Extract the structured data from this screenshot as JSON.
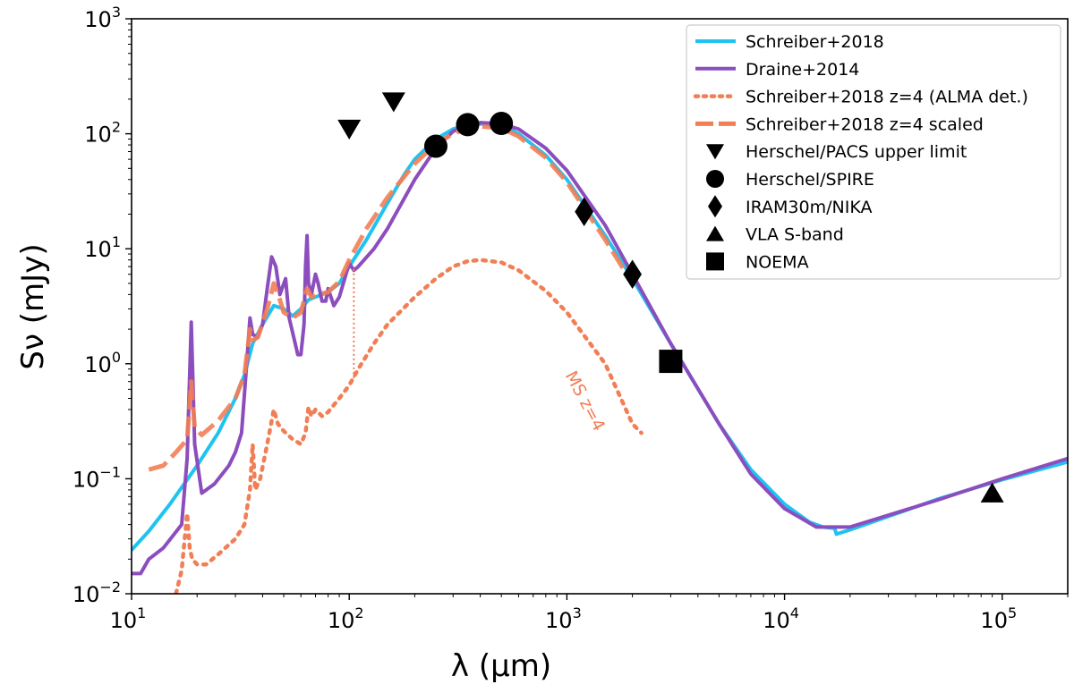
{
  "chart_data": {
    "type": "line",
    "xlabel": "λ (μm)",
    "ylabel": "Sν (mJy)",
    "xscale": "log",
    "yscale": "log",
    "xlim": [
      10,
      200000
    ],
    "ylim": [
      0.01,
      1000
    ],
    "grid": false,
    "legend_position": "top-right",
    "x_ticks": [
      {
        "base": "10",
        "exp": "1"
      },
      {
        "base": "10",
        "exp": "2"
      },
      {
        "base": "10",
        "exp": "3"
      },
      {
        "base": "10",
        "exp": "4"
      },
      {
        "base": "10",
        "exp": "5"
      }
    ],
    "y_ticks": [
      {
        "base": "10",
        "exp": "−2"
      },
      {
        "base": "10",
        "exp": "−1"
      },
      {
        "base": "10",
        "exp": "0"
      },
      {
        "base": "10",
        "exp": "1"
      },
      {
        "base": "10",
        "exp": "2"
      },
      {
        "base": "10",
        "exp": "3"
      }
    ],
    "series": [
      {
        "name": "Schreiber+2018",
        "color": "#1fc3f2",
        "style": "solid",
        "points": [
          [
            10,
            0.024
          ],
          [
            12,
            0.035
          ],
          [
            15,
            0.06
          ],
          [
            20,
            0.13
          ],
          [
            25,
            0.25
          ],
          [
            30,
            0.5
          ],
          [
            33,
            0.8
          ],
          [
            36,
            1.5
          ],
          [
            40,
            2.2
          ],
          [
            45,
            3.2
          ],
          [
            50,
            3.0
          ],
          [
            55,
            2.6
          ],
          [
            60,
            3.0
          ],
          [
            65,
            3.6
          ],
          [
            70,
            3.8
          ],
          [
            80,
            4.2
          ],
          [
            90,
            5.0
          ],
          [
            100,
            7.0
          ],
          [
            120,
            12
          ],
          [
            150,
            25
          ],
          [
            180,
            45
          ],
          [
            200,
            60
          ],
          [
            250,
            90
          ],
          [
            300,
            110
          ],
          [
            350,
            120
          ],
          [
            400,
            122
          ],
          [
            500,
            118
          ],
          [
            600,
            100
          ],
          [
            800,
            65
          ],
          [
            1000,
            40
          ],
          [
            1500,
            13
          ],
          [
            2000,
            5.5
          ],
          [
            3000,
            1.5
          ],
          [
            5000,
            0.3
          ],
          [
            7000,
            0.12
          ],
          [
            10000,
            0.06
          ],
          [
            13000,
            0.042
          ],
          [
            15000,
            0.038
          ],
          [
            17000,
            0.037
          ],
          [
            17300,
            0.033
          ],
          [
            20000,
            0.036
          ],
          [
            50000,
            0.066
          ],
          [
            100000,
            0.098
          ],
          [
            200000,
            0.14
          ]
        ]
      },
      {
        "name": "Draine+2014",
        "color": "#8c4dbd",
        "style": "solid",
        "points": [
          [
            10,
            0.015
          ],
          [
            11,
            0.015
          ],
          [
            12,
            0.02
          ],
          [
            14,
            0.025
          ],
          [
            17,
            0.04
          ],
          [
            18,
            0.15
          ],
          [
            18.8,
            2.3
          ],
          [
            19.5,
            0.2
          ],
          [
            21,
            0.075
          ],
          [
            24,
            0.09
          ],
          [
            28,
            0.13
          ],
          [
            30,
            0.17
          ],
          [
            32,
            0.25
          ],
          [
            33.5,
            0.8
          ],
          [
            35,
            2.5
          ],
          [
            36,
            1.8
          ],
          [
            38,
            1.7
          ],
          [
            40,
            2.2
          ],
          [
            42,
            4.5
          ],
          [
            44,
            8.5
          ],
          [
            46,
            7.0
          ],
          [
            48,
            4.0
          ],
          [
            51,
            5.5
          ],
          [
            53,
            2.5
          ],
          [
            56,
            1.6
          ],
          [
            58,
            1.2
          ],
          [
            60,
            1.2
          ],
          [
            62,
            2.2
          ],
          [
            63,
            7.0
          ],
          [
            64,
            13.0
          ],
          [
            65,
            5.0
          ],
          [
            67,
            4.0
          ],
          [
            70,
            6.0
          ],
          [
            72,
            5.0
          ],
          [
            75,
            3.5
          ],
          [
            78,
            3.5
          ],
          [
            80,
            4.5
          ],
          [
            85,
            3.2
          ],
          [
            90,
            3.8
          ],
          [
            100,
            7.5
          ],
          [
            105,
            6.5
          ],
          [
            110,
            7.0
          ],
          [
            130,
            10
          ],
          [
            150,
            15
          ],
          [
            200,
            40
          ],
          [
            250,
            75
          ],
          [
            300,
            105
          ],
          [
            350,
            118
          ],
          [
            400,
            125
          ],
          [
            500,
            122
          ],
          [
            600,
            110
          ],
          [
            800,
            75
          ],
          [
            1000,
            48
          ],
          [
            1500,
            16
          ],
          [
            2000,
            6.0
          ],
          [
            3000,
            1.5
          ],
          [
            5000,
            0.3
          ],
          [
            7000,
            0.11
          ],
          [
            10000,
            0.055
          ],
          [
            14000,
            0.038
          ],
          [
            20000,
            0.038
          ],
          [
            50000,
            0.065
          ],
          [
            100000,
            0.1
          ],
          [
            200000,
            0.15
          ]
        ]
      },
      {
        "name": "Schreiber+2018 z=4 (ALMA det.)",
        "color": "#f27e55",
        "style": "dotted",
        "points": [
          [
            16,
            0.01
          ],
          [
            17,
            0.016
          ],
          [
            18,
            0.05
          ],
          [
            18.5,
            0.025
          ],
          [
            19,
            0.02
          ],
          [
            20,
            0.018
          ],
          [
            22,
            0.018
          ],
          [
            25,
            0.022
          ],
          [
            30,
            0.03
          ],
          [
            33,
            0.04
          ],
          [
            35,
            0.08
          ],
          [
            36,
            0.2
          ],
          [
            37,
            0.08
          ],
          [
            39,
            0.1
          ],
          [
            42,
            0.2
          ],
          [
            45,
            0.4
          ],
          [
            47,
            0.3
          ],
          [
            50,
            0.26
          ],
          [
            55,
            0.22
          ],
          [
            60,
            0.2
          ],
          [
            63,
            0.25
          ],
          [
            65,
            0.42
          ],
          [
            67,
            0.35
          ],
          [
            70,
            0.4
          ],
          [
            75,
            0.35
          ],
          [
            80,
            0.38
          ],
          [
            90,
            0.5
          ],
          [
            100,
            0.65
          ],
          [
            110,
            0.9
          ],
          [
            130,
            1.5
          ],
          [
            150,
            2.2
          ],
          [
            200,
            3.8
          ],
          [
            250,
            5.5
          ],
          [
            300,
            7.0
          ],
          [
            350,
            7.8
          ],
          [
            400,
            8.0
          ],
          [
            500,
            7.6
          ],
          [
            600,
            6.5
          ],
          [
            800,
            4.3
          ],
          [
            1000,
            2.8
          ],
          [
            1500,
            1.0
          ],
          [
            2000,
            0.3
          ],
          [
            2200,
            0.25
          ]
        ]
      },
      {
        "name": "Schreiber+2018 z=4 scaled",
        "color": "#f27e55",
        "style": "dashed",
        "points": [
          [
            12,
            0.12
          ],
          [
            14,
            0.13
          ],
          [
            16,
            0.17
          ],
          [
            18,
            0.22
          ],
          [
            18.8,
            0.7
          ],
          [
            19.5,
            0.28
          ],
          [
            21,
            0.24
          ],
          [
            25,
            0.32
          ],
          [
            30,
            0.5
          ],
          [
            33,
            0.8
          ],
          [
            35,
            2.0
          ],
          [
            36,
            1.6
          ],
          [
            38,
            1.7
          ],
          [
            42,
            3.0
          ],
          [
            45,
            5.0
          ],
          [
            48,
            3.6
          ],
          [
            50,
            2.8
          ],
          [
            55,
            2.5
          ],
          [
            60,
            2.8
          ],
          [
            64,
            4.5
          ],
          [
            67,
            3.8
          ],
          [
            72,
            4.0
          ],
          [
            80,
            4.2
          ],
          [
            90,
            5.2
          ],
          [
            100,
            8.0
          ],
          [
            120,
            15
          ],
          [
            150,
            28
          ],
          [
            200,
            55
          ],
          [
            250,
            82
          ],
          [
            300,
            100
          ],
          [
            350,
            112
          ],
          [
            400,
            116
          ],
          [
            500,
            112
          ],
          [
            600,
            95
          ],
          [
            800,
            62
          ],
          [
            1000,
            38
          ],
          [
            1500,
            12
          ],
          [
            2000,
            5.0
          ]
        ]
      }
    ],
    "scatter": [
      {
        "name": "Herschel/PACS upper limit",
        "marker": "triangle-down",
        "points": [
          [
            100,
            110
          ],
          [
            160,
            190
          ]
        ]
      },
      {
        "name": "Herschel/SPIRE",
        "marker": "circle",
        "points": [
          [
            250,
            78
          ],
          [
            350,
            120
          ],
          [
            500,
            123
          ]
        ]
      },
      {
        "name": "IRAM30m/NIKA",
        "marker": "diamond",
        "points": [
          [
            1200,
            21
          ],
          [
            2000,
            6.0
          ]
        ]
      },
      {
        "name": "VLA S-band",
        "marker": "triangle-up",
        "points": [
          [
            90000,
            0.075
          ]
        ]
      },
      {
        "name": "NOEMA",
        "marker": "square",
        "points": [
          [
            3000,
            1.05
          ]
        ]
      }
    ],
    "vertical_line": {
      "x": 105,
      "y_from": 0.75,
      "y_to": 7.0,
      "color": "#f27e55"
    },
    "annotations": [
      {
        "text": "MS z=4",
        "x": 1150,
        "y": 0.45,
        "rotation": 62,
        "color": "#f27e55"
      }
    ]
  }
}
